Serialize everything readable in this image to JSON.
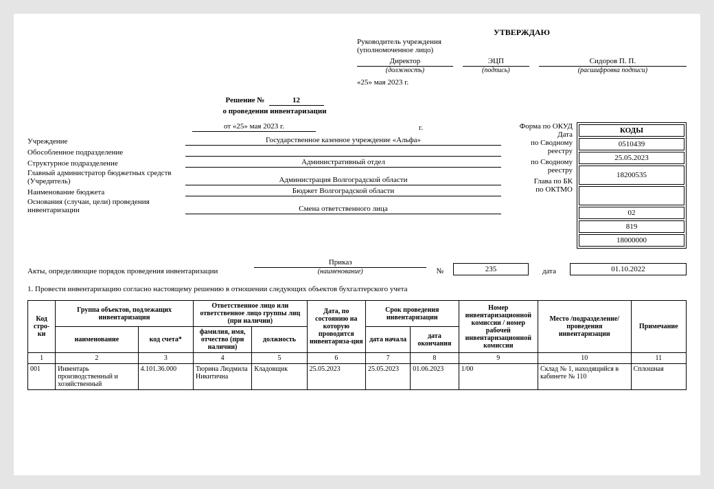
{
  "approve": {
    "title": "УТВЕРЖДАЮ",
    "sub1": "Руководитель учреждения",
    "sub2": "(уполномоченное лицо)",
    "position": "Директор",
    "position_caption": "(должность)",
    "signature": "ЭЦП",
    "signature_caption": "(подпись)",
    "decipher": "Сидоров П. П.",
    "decipher_caption": "(расшифровка подписи)",
    "date_text": "«25»  мая   2023  г."
  },
  "decision": {
    "label": "Решение   №",
    "number": "12",
    "subject": "о проведении  инвентаризации"
  },
  "from_date": "от «25» мая 2023 г.",
  "g_suffix": "г.",
  "codes": {
    "title": "КОДЫ",
    "items": [
      {
        "label": "Форма по ОКУД",
        "value": "0510439"
      },
      {
        "label": "Дата",
        "value": "25.05.2023"
      },
      {
        "label": "по Сводному\nреестру",
        "value": "18200535"
      },
      {
        "label": "по Сводному\nреестру",
        "value": ""
      },
      {
        "label": "",
        "value": "02"
      },
      {
        "label": "Глава по БК",
        "value": "819"
      },
      {
        "label": "по ОКТМО",
        "value": "18000000"
      }
    ]
  },
  "fields": [
    {
      "label": "Учреждение",
      "value": "Государственное казенное учреждение «Альфа»"
    },
    {
      "label": "Обособленное подразделение",
      "value": ""
    },
    {
      "label": "Структурное подразделение",
      "value": "Административный отдел"
    },
    {
      "label": "Главный администратор бюджетных средств (Учредитель)",
      "value": "Администрация Волгоградской области"
    },
    {
      "label": "Наименование бюджета",
      "value": "Бюджет Волгоградской области"
    },
    {
      "label": "Основания (случаи, цели) проведения инвентаризации",
      "value": "Смена ответственного лица"
    }
  ],
  "acts": {
    "label": "Акты, определяющие порядок проведения инвентаризации",
    "name": "Приказ",
    "name_caption": "(наименование)",
    "num_label": "№",
    "number": "235",
    "date_label": "дата",
    "date": "01.10.2022"
  },
  "section1": "1. Провести инвентаризацию согласно настоящему решению в отношении следующих объектов бухгалтерского учета",
  "table": {
    "headers": {
      "row_code": "Код стро-ки",
      "group": "Группа объектов, подлежащих инвентаризации",
      "group_name": "наименование",
      "group_account": "код счета*",
      "responsible": "Ответственное лицо или ответственное лицо группы лиц (при наличии)",
      "resp_fio": "фамилия, имя, отчество (при наличии)",
      "resp_position": "должность",
      "state_date": "Дата, по состоянию на которую проводится инвентариза-ция",
      "period": "Срок проведения инвентаризации",
      "date_start": "дата начала",
      "date_end": "дата окончания",
      "commission": "Номер инвентаризационной  комиссии / номер рабочей инвентаризационной комиссии",
      "place": "Место /подразделение/ проведения инвентаризации",
      "note": "Примечание"
    },
    "col_numbers": [
      "1",
      "2",
      "3",
      "4",
      "5",
      "6",
      "7",
      "8",
      "9",
      "10",
      "11"
    ],
    "rows": [
      {
        "code": "001",
        "name": "Инвентарь производственный и хозяйственный",
        "account": "4.101.36.000",
        "fio": "Тюрина Людмила Никитична",
        "position": "Кладовщик",
        "state_date": "25.05.2023",
        "date_start": "25.05.2023",
        "date_end": "01.06.2023",
        "commission": "1/00",
        "place": "Склад № 1, находящийся в кабинете № 110",
        "note": "Сплошная"
      }
    ]
  }
}
